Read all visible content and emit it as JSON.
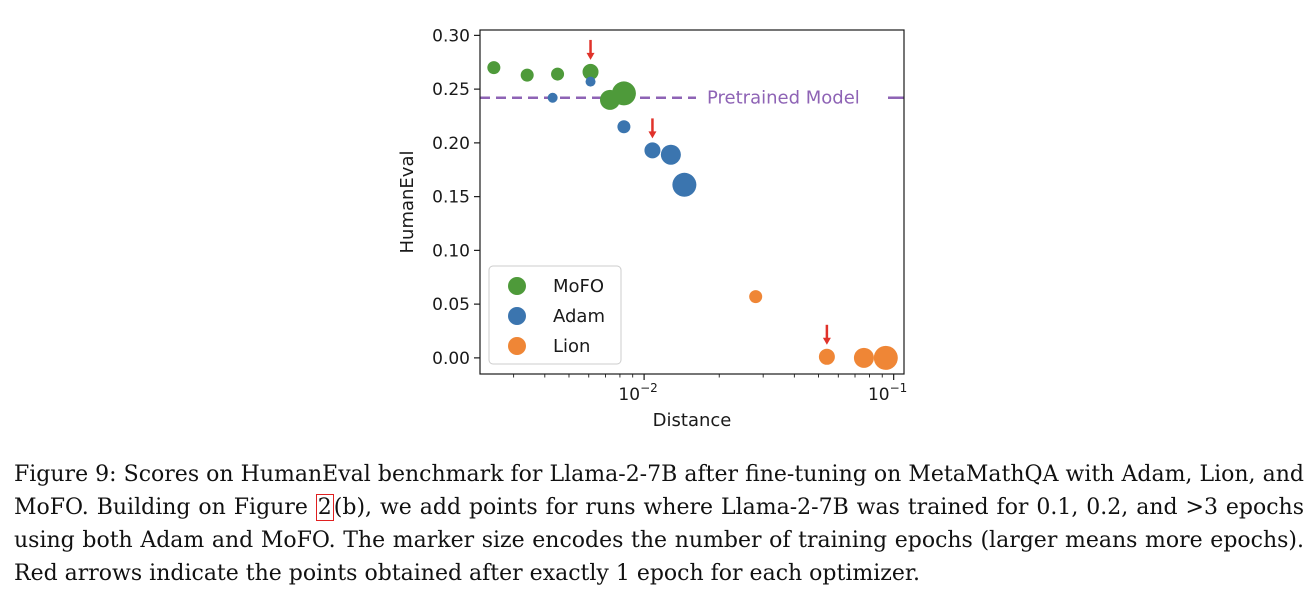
{
  "chart_data": {
    "type": "scatter",
    "xscale": "log",
    "xlabel": "Distance",
    "ylabel": "HumanEval",
    "xlim": [
      0.0022,
      0.11
    ],
    "ylim": [
      -0.015,
      0.305
    ],
    "yticks": [
      0.0,
      0.05,
      0.1,
      0.15,
      0.2,
      0.25,
      0.3
    ],
    "ytick_labels": [
      "0.00",
      "0.05",
      "0.10",
      "0.15",
      "0.20",
      "0.25",
      "0.30"
    ],
    "xticks": [
      0.01,
      0.1
    ],
    "xtick_base": "10",
    "xtick_exponents": [
      "−2",
      "−1"
    ],
    "grid": false,
    "legend_position": "lower-left",
    "reference_line": {
      "label": "Pretrained Model",
      "y": 0.242,
      "color": "#8e63b5"
    },
    "series": [
      {
        "name": "MoFO",
        "color": "#4e9a3a",
        "points": [
          {
            "x": 0.0025,
            "y": 0.27,
            "epochs": "small"
          },
          {
            "x": 0.0034,
            "y": 0.263,
            "epochs": "small"
          },
          {
            "x": 0.0045,
            "y": 0.264,
            "epochs": "small"
          },
          {
            "x": 0.0061,
            "y": 0.266,
            "epochs": "medium",
            "one_epoch": true
          },
          {
            "x": 0.0073,
            "y": 0.24,
            "epochs": "large"
          },
          {
            "x": 0.0083,
            "y": 0.246,
            "epochs": "largest"
          }
        ]
      },
      {
        "name": "Adam",
        "color": "#3b75af",
        "points": [
          {
            "x": 0.0043,
            "y": 0.242,
            "epochs": "tiny"
          },
          {
            "x": 0.0061,
            "y": 0.257,
            "epochs": "tiny"
          },
          {
            "x": 0.0083,
            "y": 0.215,
            "epochs": "small"
          },
          {
            "x": 0.0108,
            "y": 0.193,
            "epochs": "medium",
            "one_epoch": true
          },
          {
            "x": 0.0128,
            "y": 0.189,
            "epochs": "large"
          },
          {
            "x": 0.0145,
            "y": 0.161,
            "epochs": "largest"
          }
        ]
      },
      {
        "name": "Lion",
        "color": "#ef8636",
        "points": [
          {
            "x": 0.028,
            "y": 0.057,
            "epochs": "small"
          },
          {
            "x": 0.054,
            "y": 0.001,
            "epochs": "medium",
            "one_epoch": true
          },
          {
            "x": 0.076,
            "y": 0.0,
            "epochs": "large"
          },
          {
            "x": 0.093,
            "y": 0.0,
            "epochs": "largest"
          }
        ]
      }
    ],
    "one_epoch_marker_color": "#e0322a"
  },
  "caption": {
    "figure_label": "Figure 9:",
    "text_before_ref": " Scores on HumanEval benchmark for Llama-2-7B after fine-tuning on MetaMathQA with Adam, Lion, and MoFO. Building on Figure ",
    "ref_number": "2",
    "text_after_ref": "(b), we add points for runs where Llama-2-7B was trained for 0.1, 0.2, and >3 epochs using both Adam and MoFO. The marker size encodes the number of training epochs (larger means more epochs). Red arrows indicate the points obtained after exactly 1 epoch for each optimizer."
  }
}
